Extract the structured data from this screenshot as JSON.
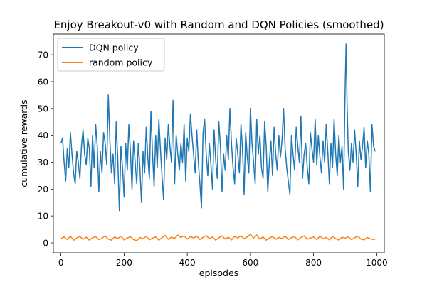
{
  "chart_data": {
    "type": "line",
    "title": "Enjoy Breakout-v0 with Random and DQN Policies (smoothed)",
    "xlabel": "episodes",
    "ylabel": "cumulative rewards",
    "xlim": [
      -24,
      1024
    ],
    "ylim": [
      -3.7,
      77.7
    ],
    "xticks": [
      0,
      200,
      400,
      600,
      800,
      1000
    ],
    "yticks": [
      0,
      10,
      20,
      30,
      40,
      50,
      60,
      70
    ],
    "legend_position": "upper-left",
    "series": [
      {
        "name": "DQN policy",
        "color": "#1f77b4",
        "x": [
          0,
          5,
          10,
          15,
          20,
          25,
          30,
          35,
          40,
          45,
          50,
          55,
          60,
          65,
          70,
          75,
          80,
          85,
          90,
          95,
          100,
          105,
          110,
          115,
          120,
          125,
          130,
          135,
          140,
          145,
          150,
          155,
          160,
          165,
          170,
          175,
          180,
          185,
          190,
          195,
          200,
          205,
          210,
          215,
          220,
          225,
          230,
          235,
          240,
          245,
          250,
          255,
          260,
          265,
          270,
          275,
          280,
          285,
          290,
          295,
          300,
          305,
          310,
          315,
          320,
          325,
          330,
          335,
          340,
          345,
          350,
          355,
          360,
          365,
          370,
          375,
          380,
          385,
          390,
          395,
          400,
          405,
          410,
          415,
          420,
          425,
          430,
          435,
          440,
          445,
          450,
          455,
          460,
          465,
          470,
          475,
          480,
          485,
          490,
          495,
          500,
          505,
          510,
          515,
          520,
          525,
          530,
          535,
          540,
          545,
          550,
          555,
          560,
          565,
          570,
          575,
          580,
          585,
          590,
          595,
          600,
          605,
          610,
          615,
          620,
          625,
          630,
          635,
          640,
          645,
          650,
          655,
          660,
          665,
          670,
          675,
          680,
          685,
          690,
          695,
          700,
          705,
          710,
          715,
          720,
          725,
          730,
          735,
          740,
          745,
          750,
          755,
          760,
          765,
          770,
          775,
          780,
          785,
          790,
          795,
          800,
          805,
          810,
          815,
          820,
          825,
          830,
          835,
          840,
          845,
          850,
          855,
          860,
          865,
          870,
          875,
          880,
          885,
          890,
          895,
          900,
          903,
          906,
          910,
          915,
          920,
          925,
          930,
          935,
          940,
          945,
          950,
          955,
          960,
          965,
          970,
          975,
          980,
          985,
          990,
          995
        ],
        "y": [
          37,
          39,
          30,
          23,
          35,
          28,
          41,
          33,
          26,
          22,
          34,
          30,
          24,
          36,
          42,
          33,
          29,
          39,
          35,
          21,
          40,
          28,
          44,
          36,
          19,
          34,
          26,
          41,
          37,
          29,
          55,
          38,
          26,
          33,
          22,
          45,
          31,
          12,
          36,
          28,
          17,
          37,
          27,
          44,
          34,
          20,
          38,
          30,
          22,
          37,
          28,
          15,
          34,
          26,
          43,
          32,
          24,
          49,
          33,
          21,
          40,
          28,
          46,
          35,
          25,
          16,
          39,
          31,
          44,
          36,
          30,
          53,
          22,
          40,
          33,
          27,
          37,
          30,
          44,
          23,
          39,
          34,
          48,
          40,
          33,
          26,
          42,
          30,
          22,
          13,
          41,
          46,
          33,
          25,
          37,
          29,
          20,
          42,
          31,
          24,
          45,
          36,
          19,
          33,
          27,
          40,
          31,
          50,
          37,
          28,
          22,
          39,
          33,
          26,
          44,
          35,
          18,
          41,
          32,
          26,
          50,
          37,
          30,
          22,
          46,
          33,
          40,
          28,
          24,
          45,
          36,
          19,
          30,
          38,
          25,
          43,
          33,
          27,
          40,
          32,
          38,
          50,
          35,
          28,
          23,
          18,
          40,
          33,
          27,
          43,
          36,
          30,
          47,
          24,
          33,
          37,
          28,
          22,
          41,
          35,
          30,
          46,
          29,
          40,
          32,
          26,
          38,
          30,
          44,
          34,
          22,
          37,
          28,
          46,
          33,
          25,
          40,
          30,
          36,
          20,
          58,
          74,
          52,
          34,
          27,
          37,
          30,
          42,
          33,
          21,
          38,
          31,
          36,
          43,
          28,
          38,
          33,
          19,
          44,
          36,
          34
        ],
        "style": "solid"
      },
      {
        "name": "random policy",
        "color": "#ff7f0e",
        "x": [
          0,
          10,
          20,
          30,
          40,
          50,
          60,
          70,
          80,
          90,
          100,
          110,
          120,
          130,
          140,
          150,
          160,
          170,
          180,
          190,
          200,
          210,
          220,
          230,
          240,
          250,
          260,
          270,
          280,
          290,
          300,
          310,
          320,
          330,
          340,
          350,
          360,
          370,
          380,
          390,
          400,
          410,
          420,
          430,
          440,
          450,
          460,
          470,
          480,
          490,
          500,
          510,
          520,
          530,
          540,
          550,
          560,
          570,
          580,
          590,
          600,
          610,
          620,
          630,
          640,
          650,
          660,
          670,
          680,
          690,
          700,
          710,
          720,
          730,
          740,
          750,
          760,
          770,
          780,
          790,
          800,
          810,
          820,
          830,
          840,
          850,
          860,
          870,
          880,
          890,
          900,
          910,
          920,
          930,
          940,
          950,
          960,
          970,
          980,
          990,
          995
        ],
        "y": [
          1.5,
          2.2,
          1.2,
          2.5,
          1.0,
          1.8,
          2.4,
          1.3,
          2.1,
          1.0,
          1.9,
          2.3,
          1.2,
          1.7,
          2.6,
          1.4,
          1.0,
          2.2,
          1.6,
          2.5,
          1.1,
          1.8,
          2.3,
          1.2,
          0.8,
          2.0,
          1.5,
          2.4,
          1.1,
          1.7,
          2.2,
          1.0,
          1.9,
          2.8,
          1.3,
          2.1,
          1.6,
          2.9,
          2.0,
          2.6,
          1.4,
          2.3,
          1.8,
          2.5,
          1.2,
          2.0,
          2.7,
          1.5,
          2.2,
          1.0,
          1.9,
          2.6,
          1.4,
          2.1,
          1.1,
          2.4,
          1.8,
          2.6,
          1.5,
          2.2,
          3.2,
          1.8,
          2.9,
          1.4,
          2.2,
          1.0,
          1.8,
          2.4,
          1.3,
          2.0,
          1.6,
          2.5,
          1.2,
          1.9,
          2.3,
          1.1,
          2.0,
          2.6,
          1.3,
          1.8,
          2.2,
          1.2,
          2.5,
          1.5,
          2.0,
          1.1,
          2.4,
          1.6,
          1.0,
          2.1,
          1.7,
          2.3,
          1.2,
          1.9,
          2.5,
          1.4,
          1.1,
          2.0,
          1.5,
          1.2,
          1.4
        ],
        "style": "solid"
      }
    ]
  }
}
